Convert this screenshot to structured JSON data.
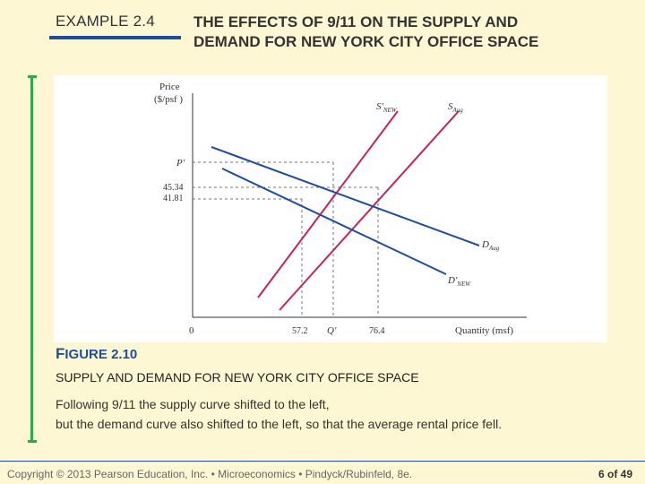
{
  "header": {
    "example_label": "EXAMPLE 2.4",
    "title_line1": "THE EFFECTS OF 9/11 ON THE SUPPLY AND",
    "title_line2": "DEMAND FOR NEW YORK CITY OFFICE SPACE"
  },
  "figure": {
    "label_prefix": "F",
    "label_rest": "IGURE 2.10",
    "caption_title": "SUPPLY AND DEMAND FOR NEW YORK CITY OFFICE SPACE",
    "caption_line1": "Following 9/11 the supply curve shifted to the left,",
    "caption_line2": "but the demand curve also shifted to the left, so that the average rental price fell."
  },
  "chart_data": {
    "type": "line",
    "ylabel_line1": "Price",
    "ylabel_line2": "($/psf )",
    "xlabel": "Quantity (msf)",
    "origin_label": "0",
    "y_ticks": [
      "P'",
      "45.34",
      "41.81"
    ],
    "x_ticks": [
      "57.2",
      "Q'",
      "76.4"
    ],
    "series": [
      {
        "name": "S'",
        "sub": "NEW",
        "kind": "supply"
      },
      {
        "name": "S",
        "sub": "Aug",
        "kind": "supply"
      },
      {
        "name": "D",
        "sub": "Aug",
        "kind": "demand"
      },
      {
        "name": "D'",
        "sub": "NEW",
        "kind": "demand"
      }
    ],
    "equilibria": [
      {
        "label": "new",
        "price": "41.81",
        "quantity": "57.2"
      },
      {
        "label": "aug",
        "price": "45.34",
        "quantity": "76.4"
      },
      {
        "label": "supply-shift-only",
        "price": "P'",
        "quantity": "Q'"
      }
    ]
  },
  "footer": {
    "copyright": "Copyright © 2013 Pearson Education, Inc. • Microeconomics • Pindyck/Rubinfeld, 8e.",
    "page": "6 of 49"
  },
  "colors": {
    "supply": "#c4245c",
    "demand": "#1f4e9c",
    "accent_green": "#2fa84a",
    "background": "#fdf7d3"
  }
}
